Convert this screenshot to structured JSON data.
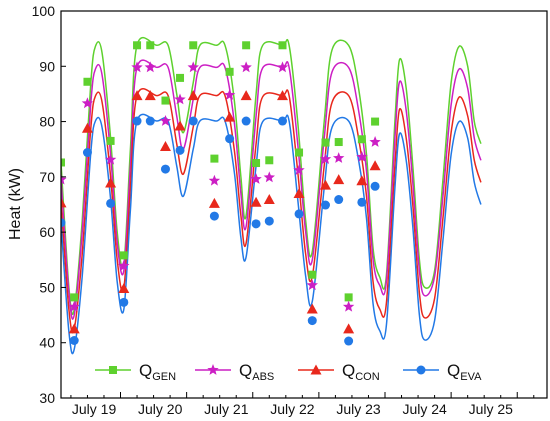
{
  "chart_data": {
    "type": "line",
    "title": "",
    "xlabel": "",
    "ylabel": "Heat (kW)",
    "ylim": [
      30,
      100
    ],
    "yticks": [
      30,
      40,
      50,
      60,
      70,
      80,
      90,
      100
    ],
    "xlim": [
      18.1,
      25.45
    ],
    "xtick_labels": [
      "July 19",
      "July 20",
      "July 21",
      "July 22",
      "July 23",
      "July 24",
      "July 25"
    ],
    "xtick_label_positions": [
      18.6,
      19.6,
      20.6,
      21.6,
      22.6,
      23.6,
      24.6
    ],
    "grid": false,
    "legend_position": "bottom",
    "series": [
      {
        "name": "Q",
        "subscript": "GEN",
        "marker": "square",
        "color": "#5ed12e",
        "curve": [
          [
            18.1,
            72.6
          ],
          [
            18.22,
            50
          ],
          [
            18.3,
            46
          ],
          [
            18.42,
            62
          ],
          [
            18.55,
            87
          ],
          [
            18.62,
            93.6
          ],
          [
            18.72,
            92.5
          ],
          [
            18.85,
            77
          ],
          [
            18.95,
            60
          ],
          [
            19.05,
            54.2
          ],
          [
            19.15,
            75
          ],
          [
            19.25,
            93.8
          ],
          [
            19.55,
            93.8
          ],
          [
            19.72,
            93.8
          ],
          [
            19.85,
            85
          ],
          [
            19.95,
            78
          ],
          [
            20.1,
            87
          ],
          [
            20.2,
            93.8
          ],
          [
            20.45,
            93.8
          ],
          [
            20.58,
            93.8
          ],
          [
            20.72,
            84
          ],
          [
            20.82,
            70
          ],
          [
            20.9,
            63
          ],
          [
            21.05,
            85
          ],
          [
            21.15,
            93.8
          ],
          [
            21.45,
            93.8
          ],
          [
            21.55,
            93.8
          ],
          [
            21.68,
            80
          ],
          [
            21.8,
            62
          ],
          [
            21.9,
            56.5
          ],
          [
            22.08,
            80
          ],
          [
            22.2,
            93
          ],
          [
            22.45,
            93.8
          ],
          [
            22.6,
            86
          ],
          [
            22.72,
            74
          ],
          [
            22.82,
            57
          ],
          [
            22.92,
            51.9
          ],
          [
            23.02,
            52
          ],
          [
            23.15,
            80
          ],
          [
            23.22,
            91.2
          ],
          [
            23.32,
            86
          ],
          [
            23.42,
            72
          ],
          [
            23.52,
            55
          ],
          [
            23.6,
            50
          ],
          [
            23.75,
            53
          ],
          [
            23.88,
            70
          ],
          [
            24.0,
            87
          ],
          [
            24.12,
            93.6
          ],
          [
            24.25,
            90
          ],
          [
            24.35,
            80
          ],
          [
            24.45,
            76
          ]
        ],
        "markers": [
          [
            18.1,
            72.6
          ],
          [
            18.3,
            48.2
          ],
          [
            18.5,
            87.2
          ],
          [
            18.85,
            76.5
          ],
          [
            19.05,
            55.8
          ],
          [
            19.25,
            93.8
          ],
          [
            19.45,
            93.8
          ],
          [
            19.68,
            83.8
          ],
          [
            19.9,
            87.9
          ],
          [
            20.1,
            93.8
          ],
          [
            20.42,
            73.3
          ],
          [
            20.65,
            89
          ],
          [
            20.9,
            93.8
          ],
          [
            21.05,
            72.5
          ],
          [
            21.25,
            73
          ],
          [
            21.45,
            93.8
          ],
          [
            21.7,
            74.4
          ],
          [
            21.9,
            52.3
          ],
          [
            22.1,
            76.2
          ],
          [
            22.3,
            76.3
          ],
          [
            22.45,
            48.2
          ],
          [
            22.65,
            76.8
          ],
          [
            22.85,
            80
          ]
        ]
      },
      {
        "name": "Q",
        "subscript": "ABS",
        "marker": "star",
        "color": "#cc1fc4",
        "curve": [
          [
            18.1,
            69.5
          ],
          [
            18.22,
            49
          ],
          [
            18.3,
            45
          ],
          [
            18.42,
            60
          ],
          [
            18.55,
            83.3
          ],
          [
            18.62,
            89.5
          ],
          [
            18.72,
            88.5
          ],
          [
            18.85,
            74
          ],
          [
            18.95,
            58
          ],
          [
            19.05,
            53
          ],
          [
            19.15,
            72
          ],
          [
            19.25,
            89.8
          ],
          [
            19.55,
            89.8
          ],
          [
            19.72,
            89.8
          ],
          [
            19.85,
            81
          ],
          [
            19.95,
            75
          ],
          [
            20.1,
            84
          ],
          [
            20.2,
            89.8
          ],
          [
            20.45,
            89.8
          ],
          [
            20.58,
            89.8
          ],
          [
            20.72,
            80
          ],
          [
            20.82,
            67
          ],
          [
            20.9,
            61
          ],
          [
            21.05,
            81
          ],
          [
            21.15,
            89.7
          ],
          [
            21.45,
            89.8
          ],
          [
            21.55,
            89.8
          ],
          [
            21.68,
            76
          ],
          [
            21.8,
            60
          ],
          [
            21.9,
            55
          ],
          [
            22.08,
            77
          ],
          [
            22.2,
            89
          ],
          [
            22.45,
            89.8
          ],
          [
            22.6,
            82
          ],
          [
            22.72,
            71
          ],
          [
            22.82,
            55
          ],
          [
            22.92,
            50.4
          ],
          [
            23.02,
            51
          ],
          [
            23.15,
            77
          ],
          [
            23.22,
            87.2
          ],
          [
            23.32,
            82
          ],
          [
            23.42,
            69
          ],
          [
            23.52,
            53
          ],
          [
            23.6,
            48.5
          ],
          [
            23.75,
            52
          ],
          [
            23.88,
            67
          ],
          [
            24.0,
            83
          ],
          [
            24.12,
            89.5
          ],
          [
            24.25,
            86
          ],
          [
            24.35,
            77
          ],
          [
            24.45,
            73
          ]
        ],
        "markers": [
          [
            18.1,
            69.5
          ],
          [
            18.3,
            46.5
          ],
          [
            18.5,
            83.3
          ],
          [
            18.85,
            73.1
          ],
          [
            19.05,
            53.9
          ],
          [
            19.25,
            89.8
          ],
          [
            19.45,
            89.8
          ],
          [
            19.68,
            80.1
          ],
          [
            19.9,
            84
          ],
          [
            20.1,
            89.8
          ],
          [
            20.42,
            69.3
          ],
          [
            20.65,
            84.8
          ],
          [
            20.9,
            89.8
          ],
          [
            21.05,
            69.6
          ],
          [
            21.25,
            69.9
          ],
          [
            21.45,
            89.8
          ],
          [
            21.7,
            71.2
          ],
          [
            21.9,
            50.4
          ],
          [
            22.1,
            73.2
          ],
          [
            22.3,
            73.4
          ],
          [
            22.45,
            46.5
          ],
          [
            22.65,
            73.6
          ],
          [
            22.85,
            76.3
          ]
        ]
      },
      {
        "name": "Q",
        "subscript": "CON",
        "marker": "triangle",
        "color": "#e8281c",
        "curve": [
          [
            18.1,
            65.3
          ],
          [
            18.22,
            46
          ],
          [
            18.3,
            42.5
          ],
          [
            18.42,
            56
          ],
          [
            18.55,
            78.8
          ],
          [
            18.62,
            84.6
          ],
          [
            18.72,
            83.6
          ],
          [
            18.85,
            70
          ],
          [
            18.95,
            55
          ],
          [
            19.05,
            49.8
          ],
          [
            19.15,
            68
          ],
          [
            19.25,
            84.7
          ],
          [
            19.55,
            84.7
          ],
          [
            19.72,
            84.7
          ],
          [
            19.85,
            76
          ],
          [
            19.95,
            70.5
          ],
          [
            20.1,
            79
          ],
          [
            20.2,
            84.7
          ],
          [
            20.45,
            84.7
          ],
          [
            20.58,
            84.7
          ],
          [
            20.72,
            75
          ],
          [
            20.82,
            63
          ],
          [
            20.9,
            58
          ],
          [
            21.05,
            76
          ],
          [
            21.15,
            84.5
          ],
          [
            21.45,
            84.7
          ],
          [
            21.55,
            84.7
          ],
          [
            21.68,
            71
          ],
          [
            21.8,
            56
          ],
          [
            21.9,
            52
          ],
          [
            22.08,
            72
          ],
          [
            22.2,
            83.5
          ],
          [
            22.45,
            84.7
          ],
          [
            22.6,
            77
          ],
          [
            22.72,
            66.5
          ],
          [
            22.82,
            51
          ],
          [
            22.92,
            46.1
          ],
          [
            23.02,
            47
          ],
          [
            23.15,
            72
          ],
          [
            23.22,
            82.2
          ],
          [
            23.32,
            77
          ],
          [
            23.42,
            65
          ],
          [
            23.52,
            49
          ],
          [
            23.6,
            44.5
          ],
          [
            23.75,
            48
          ],
          [
            23.88,
            63
          ],
          [
            24.0,
            78
          ],
          [
            24.12,
            84.4
          ],
          [
            24.25,
            81
          ],
          [
            24.35,
            73
          ],
          [
            24.45,
            69
          ]
        ],
        "markers": [
          [
            18.1,
            65.3
          ],
          [
            18.3,
            42.5
          ],
          [
            18.5,
            78.8
          ],
          [
            18.85,
            68.9
          ],
          [
            19.05,
            49.8
          ],
          [
            19.25,
            84.7
          ],
          [
            19.45,
            84.7
          ],
          [
            19.68,
            75.5
          ],
          [
            19.9,
            79.2
          ],
          [
            20.1,
            84.7
          ],
          [
            20.42,
            65.2
          ],
          [
            20.65,
            80.8
          ],
          [
            20.9,
            84.7
          ],
          [
            21.05,
            65.4
          ],
          [
            21.25,
            65.9
          ],
          [
            21.45,
            84.7
          ],
          [
            21.7,
            67
          ],
          [
            21.9,
            46.1
          ],
          [
            22.1,
            68.5
          ],
          [
            22.3,
            69.5
          ],
          [
            22.45,
            42.5
          ],
          [
            22.65,
            69.3
          ],
          [
            22.85,
            72
          ]
        ]
      },
      {
        "name": "Q",
        "subscript": "EVA",
        "marker": "circle",
        "color": "#2279e6",
        "curve": [
          [
            18.1,
            61.7
          ],
          [
            18.22,
            42
          ],
          [
            18.3,
            38.8
          ],
          [
            18.42,
            52
          ],
          [
            18.55,
            74.4
          ],
          [
            18.62,
            80.1
          ],
          [
            18.72,
            79
          ],
          [
            18.85,
            66
          ],
          [
            18.95,
            51
          ],
          [
            19.05,
            46
          ],
          [
            19.15,
            64
          ],
          [
            19.25,
            80.1
          ],
          [
            19.55,
            80.1
          ],
          [
            19.72,
            80.1
          ],
          [
            19.85,
            72
          ],
          [
            19.95,
            66.5
          ],
          [
            20.1,
            75
          ],
          [
            20.2,
            80.1
          ],
          [
            20.45,
            80.1
          ],
          [
            20.58,
            80.1
          ],
          [
            20.72,
            71
          ],
          [
            20.82,
            59
          ],
          [
            20.9,
            55.5
          ],
          [
            21.05,
            72
          ],
          [
            21.15,
            80
          ],
          [
            21.45,
            80.1
          ],
          [
            21.55,
            80.1
          ],
          [
            21.68,
            66
          ],
          [
            21.8,
            52
          ],
          [
            21.9,
            47.5
          ],
          [
            22.08,
            68
          ],
          [
            22.2,
            79
          ],
          [
            22.45,
            80.1
          ],
          [
            22.6,
            73
          ],
          [
            22.72,
            62.5
          ],
          [
            22.82,
            47
          ],
          [
            22.92,
            42.2
          ],
          [
            23.02,
            43
          ],
          [
            23.15,
            68
          ],
          [
            23.22,
            77.8
          ],
          [
            23.32,
            73
          ],
          [
            23.42,
            61
          ],
          [
            23.52,
            45
          ],
          [
            23.6,
            40.5
          ],
          [
            23.75,
            44
          ],
          [
            23.88,
            59
          ],
          [
            24.0,
            74
          ],
          [
            24.12,
            80
          ],
          [
            24.25,
            77
          ],
          [
            24.35,
            69
          ],
          [
            24.45,
            65
          ]
        ],
        "markers": [
          [
            18.1,
            61.7
          ],
          [
            18.3,
            40.4
          ],
          [
            18.5,
            74.4
          ],
          [
            18.85,
            65.2
          ],
          [
            19.05,
            47.3
          ],
          [
            19.25,
            80.1
          ],
          [
            19.45,
            80.1
          ],
          [
            19.68,
            71.4
          ],
          [
            19.9,
            74.8
          ],
          [
            20.1,
            80.1
          ],
          [
            20.42,
            62.9
          ],
          [
            20.65,
            76.9
          ],
          [
            20.9,
            80.1
          ],
          [
            21.05,
            61.5
          ],
          [
            21.25,
            62
          ],
          [
            21.45,
            80.1
          ],
          [
            21.7,
            63.3
          ],
          [
            21.9,
            44
          ],
          [
            22.1,
            64.9
          ],
          [
            22.3,
            65.9
          ],
          [
            22.45,
            40.3
          ],
          [
            22.65,
            65.4
          ],
          [
            22.85,
            68.3
          ]
        ]
      }
    ]
  }
}
